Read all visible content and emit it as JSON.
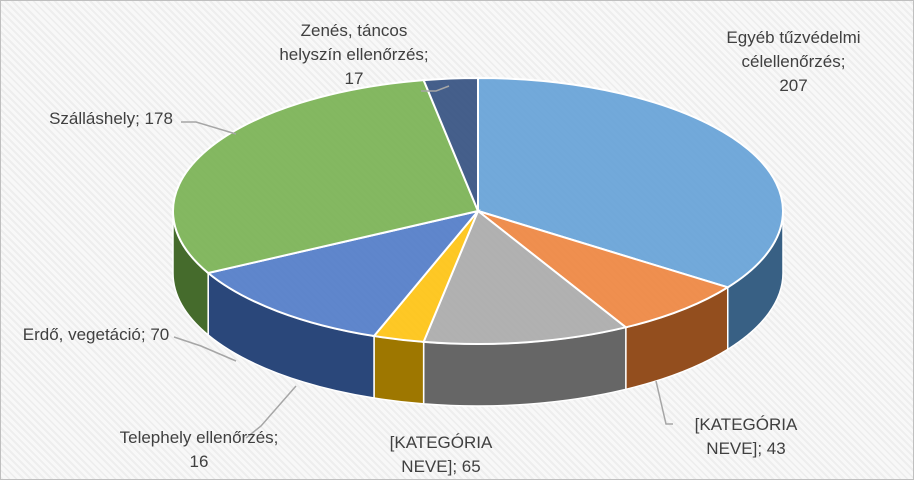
{
  "chart_data": {
    "type": "pie3d",
    "categories": [
      "Egyéb tűzvédelmi célellenőrzés",
      "[KATEGÓRIA NEVE]",
      "[KATEGÓRIA NEVE]",
      "Telephely ellenőrzés",
      "Erdő, vegetáció",
      "Szálláshely",
      "Zenés, táncos helyszín ellenőrzés"
    ],
    "values": [
      207,
      43,
      65,
      16,
      70,
      178,
      17
    ],
    "colors": [
      "#5b9bd5",
      "#ed7d31",
      "#a5a5a5",
      "#ffc000",
      "#4472c4",
      "#70ad47",
      "#264478"
    ],
    "label_separator": "; "
  }
}
